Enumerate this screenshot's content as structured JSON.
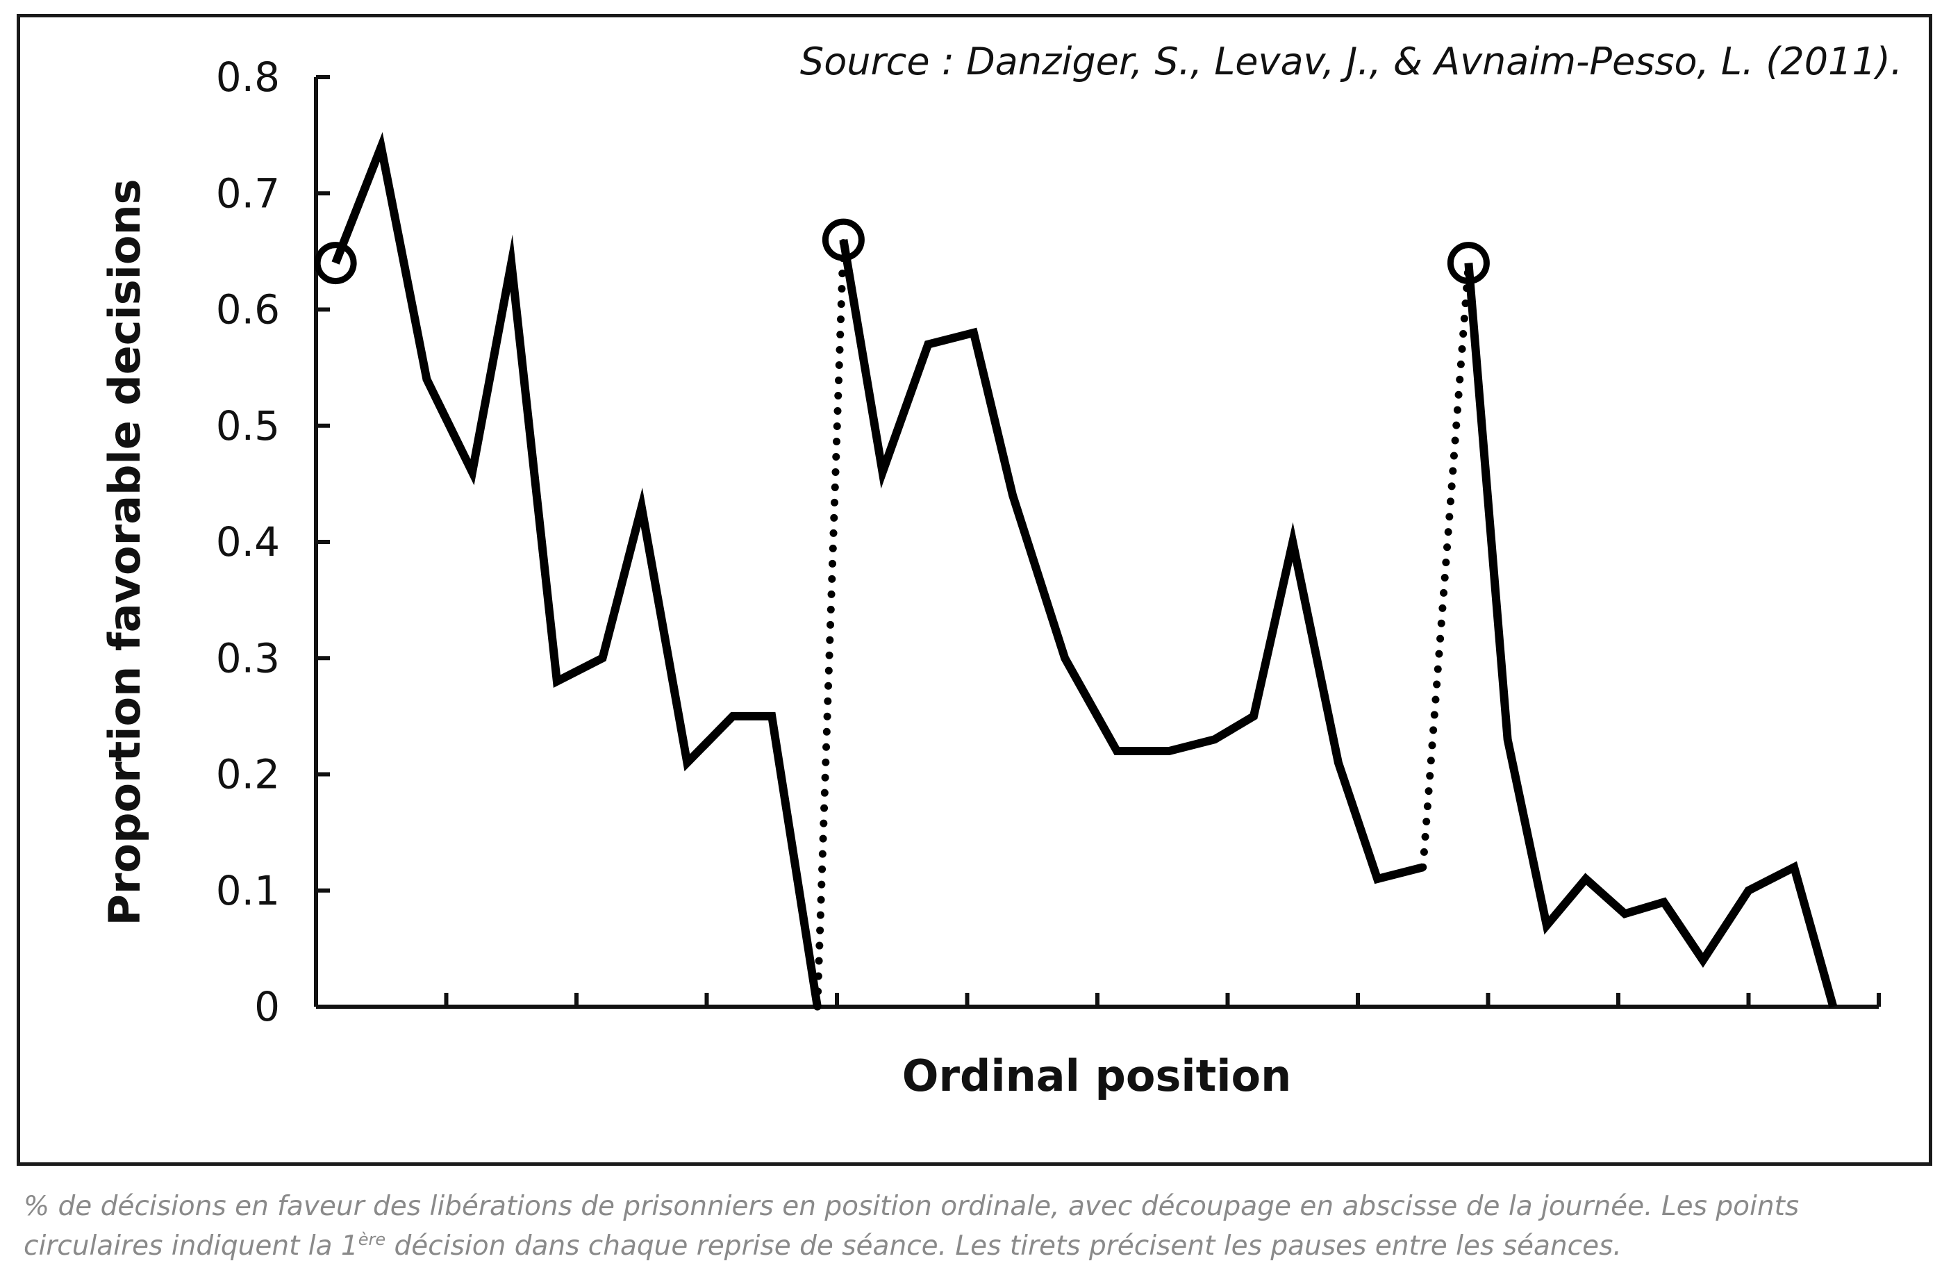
{
  "chart_data": {
    "type": "line",
    "source": "Source : Danziger, S., Levav, J., & Avnaim-Pesso, L. (2011).",
    "xlabel": "Ordinal position",
    "ylabel": "Proportion favorable decisions",
    "ylim": [
      0,
      0.8
    ],
    "yticks": [
      "0",
      "0.1",
      "0.2",
      "0.3",
      "0.4",
      "0.5",
      "0.6",
      "0.7",
      "0.8"
    ],
    "x_tick_count": 12,
    "grid": false,
    "line_color": "#000000",
    "sessions": [
      {
        "x": [
          0.15,
          0.5,
          0.85,
          1.2,
          1.5,
          1.85,
          2.2,
          2.5,
          2.85,
          3.2,
          3.5,
          3.85
        ],
        "y": [
          0.64,
          0.74,
          0.54,
          0.46,
          0.64,
          0.28,
          0.3,
          0.43,
          0.21,
          0.25,
          0.25,
          0.0
        ]
      },
      {
        "x": [
          4.05,
          4.35,
          4.7,
          5.05,
          5.35,
          5.75,
          6.15,
          6.55,
          6.9,
          7.2,
          7.5,
          7.85,
          8.15,
          8.5
        ],
        "y": [
          0.66,
          0.46,
          0.57,
          0.58,
          0.44,
          0.3,
          0.22,
          0.22,
          0.23,
          0.25,
          0.4,
          0.21,
          0.11,
          0.12
        ]
      },
      {
        "x": [
          8.85,
          9.15,
          9.45,
          9.75,
          10.05,
          10.35,
          10.65,
          11.0,
          11.35,
          11.65
        ],
        "y": [
          0.64,
          0.23,
          0.07,
          0.11,
          0.08,
          0.09,
          0.04,
          0.1,
          0.12,
          0.0
        ]
      }
    ],
    "session_starts": [
      0,
      1,
      2
    ],
    "breaks": [
      {
        "from": [
          3.85,
          0.0
        ],
        "to": [
          4.05,
          0.66
        ]
      },
      {
        "from": [
          8.5,
          0.12
        ],
        "to": [
          8.85,
          0.64
        ]
      }
    ],
    "annotations": [
      "circles mark first decision of each session",
      "dotted lines mark breaks between sessions"
    ]
  },
  "caption": {
    "part1": "% de décisions en faveur des libérations de prisonniers en position ordinale, avec découpage en abscisse de la journée. Les points circulaires indiquent la 1",
    "sup": "ère",
    "part2": " décision dans chaque reprise de séance. Les tirets précisent les pauses entre les séances."
  }
}
